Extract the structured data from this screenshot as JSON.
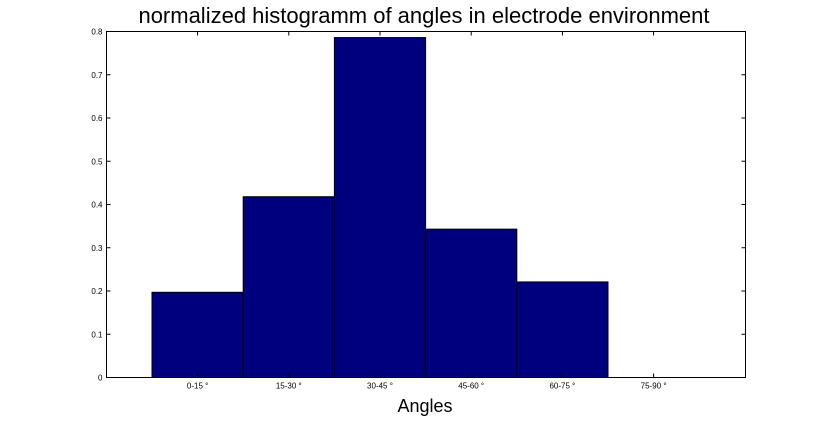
{
  "chart_data": {
    "type": "bar",
    "title": "normalized histogramm of angles in electrode environment",
    "xlabel": "Angles",
    "ylabel": "",
    "categories": [
      "0-15 °",
      "15-30 °",
      "30-45 °",
      "45-60 °",
      "60-75 °",
      "75-90 °"
    ],
    "values": [
      0.197,
      0.418,
      0.786,
      0.343,
      0.221,
      0
    ],
    "ylim": [
      0,
      0.8
    ],
    "yticks": [
      "0",
      "0.1",
      "0.2",
      "0.3",
      "0.4",
      "0.5",
      "0.6",
      "0.7",
      "0.8"
    ],
    "grid": false,
    "bar_color": "#00007f",
    "bar_edge_color": "#000000"
  }
}
